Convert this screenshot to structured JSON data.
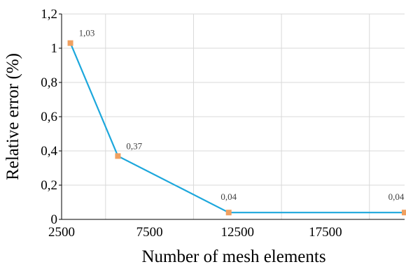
{
  "chart_data": {
    "type": "line",
    "title": "",
    "xlabel": "Number of mesh elements",
    "ylabel": "Relative error (%)",
    "x_ticks": [
      "2500",
      "7500",
      "12500",
      "17500"
    ],
    "x_tick_values": [
      2500,
      7500,
      12500,
      17500
    ],
    "y_ticks": [
      "0",
      "0,2",
      "0,4",
      "0,6",
      "0,8",
      "1",
      "1,2"
    ],
    "y_tick_values": [
      0,
      0.2,
      0.4,
      0.6,
      0.8,
      1.0,
      1.2
    ],
    "xlim": [
      2500,
      22000
    ],
    "ylim": [
      0,
      1.2
    ],
    "grid": true,
    "series": [
      {
        "x": [
          3000,
          5700,
          12000,
          22000
        ],
        "y": [
          1.03,
          0.37,
          0.04,
          0.04
        ],
        "labels": [
          "1,03",
          "0,37",
          "0,04",
          "0,04"
        ],
        "line_color": "#1ca7dc",
        "marker_color": "#f0a060"
      }
    ]
  }
}
